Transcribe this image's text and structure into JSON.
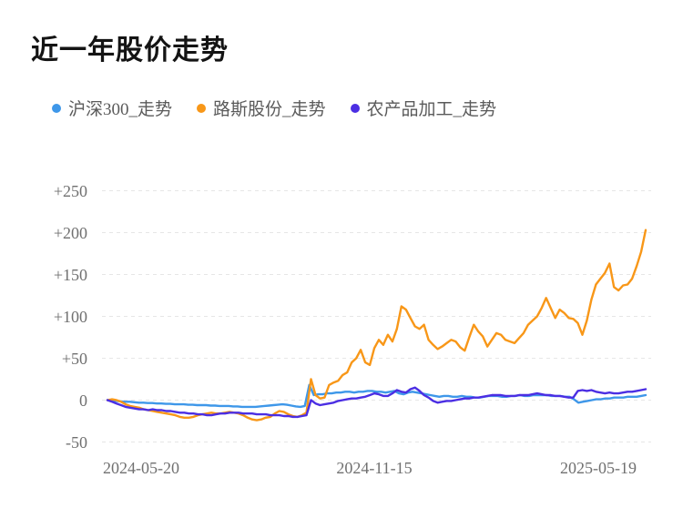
{
  "title": "近一年股价走势",
  "chart_data": {
    "type": "line",
    "title": "近一年股价走势",
    "xlabel": "",
    "ylabel": "",
    "ylim": [
      -50,
      250
    ],
    "grid": "horizontal-dashed",
    "legend_position": "top-left",
    "x_axis": {
      "tick_labels": [
        "2024-05-20",
        "2024-11-15",
        "2025-05-19"
      ],
      "range_note": "daily trading dates from 2024-05-20 to 2025-05-19"
    },
    "y_axis": {
      "ticks": [
        {
          "label": "+250",
          "value": 250
        },
        {
          "label": "+200",
          "value": 200
        },
        {
          "label": "+150",
          "value": 150
        },
        {
          "label": "+100",
          "value": 100
        },
        {
          "label": "+50",
          "value": 50
        },
        {
          "label": "0",
          "value": 0
        },
        {
          "label": "-50",
          "value": -50
        }
      ]
    },
    "series": [
      {
        "name": "沪深300_走势",
        "color": "#3E97E9",
        "values": [
          0,
          -0.5,
          -1,
          -1.5,
          -2,
          -2,
          -2.5,
          -3,
          -3,
          -3.5,
          -3.5,
          -4,
          -4,
          -4.5,
          -4.5,
          -5,
          -5,
          -5,
          -5.5,
          -5.5,
          -6,
          -6,
          -6,
          -6.5,
          -6.5,
          -7,
          -7,
          -7,
          -7.5,
          -7.5,
          -8,
          -8,
          -8,
          -8,
          -7.5,
          -7,
          -6.5,
          -6,
          -5.5,
          -5,
          -5.5,
          -6.5,
          -7.5,
          -8,
          -7,
          18,
          6,
          7,
          7,
          8,
          8,
          9,
          9,
          10,
          10,
          9,
          10,
          10,
          11,
          11,
          10,
          10,
          9,
          10,
          11,
          8,
          7,
          9,
          10,
          9,
          8,
          7,
          6,
          5,
          4,
          5,
          5,
          4,
          4,
          5,
          4,
          4,
          3,
          3,
          4,
          5,
          5,
          5,
          4,
          4,
          5,
          5,
          6,
          5,
          5,
          6,
          6,
          6,
          6,
          5,
          5,
          5,
          4,
          4,
          1,
          -3,
          -2,
          -1,
          0,
          1,
          1,
          2,
          2,
          3,
          3,
          3,
          4,
          4,
          4,
          5,
          6
        ]
      },
      {
        "name": "路斯股份_走势",
        "color": "#F89718",
        "values": [
          0,
          1,
          0,
          -2,
          -5,
          -7,
          -8,
          -9,
          -11,
          -12,
          -13,
          -14,
          -15,
          -16,
          -17,
          -18,
          -20,
          -21,
          -21,
          -20,
          -18,
          -17,
          -16,
          -15,
          -16,
          -16,
          -15,
          -14,
          -15,
          -16,
          -18,
          -21,
          -23,
          -24,
          -23,
          -21,
          -20,
          -16,
          -13,
          -14,
          -17,
          -19,
          -20,
          -18,
          -15,
          25,
          6,
          2,
          3,
          18,
          21,
          23,
          30,
          33,
          45,
          50,
          60,
          45,
          42,
          62,
          72,
          66,
          78,
          70,
          85,
          112,
          108,
          98,
          88,
          85,
          90,
          72,
          66,
          61,
          64,
          68,
          72,
          70,
          63,
          59,
          75,
          90,
          82,
          76,
          64,
          72,
          80,
          78,
          72,
          70,
          68,
          74,
          80,
          90,
          95,
          100,
          110,
          122,
          110,
          98,
          108,
          104,
          98,
          97,
          92,
          78,
          95,
          120,
          138,
          145,
          152,
          163,
          135,
          131,
          137,
          138,
          145,
          160,
          177,
          203
        ]
      },
      {
        "name": "农产品加工_走势",
        "color": "#4B2EE3",
        "values": [
          0,
          -2,
          -4,
          -6,
          -8,
          -9,
          -10,
          -11,
          -11,
          -12,
          -11,
          -12,
          -12,
          -13,
          -13,
          -14,
          -15,
          -15,
          -16,
          -16,
          -17,
          -17,
          -18,
          -18,
          -17,
          -16,
          -16,
          -15,
          -15,
          -15,
          -16,
          -16,
          -16,
          -17,
          -17,
          -17,
          -18,
          -18,
          -18,
          -19,
          -19,
          -20,
          -20,
          -19,
          -18,
          0,
          -4,
          -6,
          -5,
          -4,
          -3,
          -1,
          0,
          1,
          2,
          2,
          3,
          4,
          6,
          8,
          7,
          5,
          5,
          8,
          12,
          10,
          9,
          13,
          15,
          11,
          6,
          3,
          -1,
          -3,
          -2,
          -1,
          -1,
          0,
          1,
          2,
          2,
          3,
          3,
          4,
          5,
          6,
          6,
          6,
          5,
          5,
          5,
          6,
          6,
          6,
          7,
          8,
          7,
          6,
          6,
          5,
          5,
          4,
          3,
          3,
          11,
          12,
          11,
          12,
          10,
          9,
          8,
          9,
          8,
          8,
          9,
          10,
          10,
          11,
          12,
          13
        ]
      }
    ]
  }
}
